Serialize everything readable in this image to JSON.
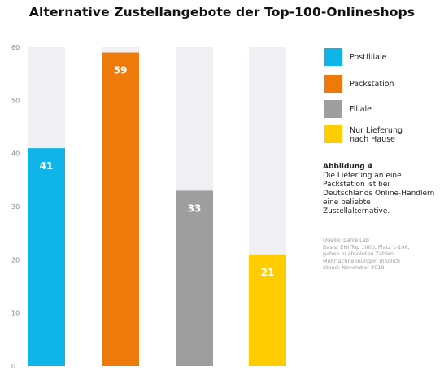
{
  "chart_data": {
    "type": "bar",
    "title": "Alternative Zustellangebote der Top-100-Onlineshops",
    "categories": [
      "Postfiliale",
      "Packstation",
      "Filiale",
      "Nur Lieferung nach Hause"
    ],
    "series": [
      {
        "values": [
          41,
          59,
          33,
          21
        ]
      }
    ],
    "data_labels": [
      "41",
      "59",
      "33",
      "21"
    ],
    "colors": [
      "#0fb5e8",
      "#ef7a0c",
      "#9e9e9e",
      "#ffcc00"
    ],
    "background_bar_color": "#efeff4",
    "ylim": [
      0,
      60
    ],
    "yticks": [
      "0",
      "10",
      "20",
      "30",
      "40",
      "50",
      "60"
    ],
    "grid": false,
    "legend_position": "right"
  },
  "legend": [
    {
      "label": "Postfiliale",
      "color": "#0fb5e8"
    },
    {
      "label": "Packstation",
      "color": "#ef7a0c"
    },
    {
      "label": "Filiale",
      "color": "#9e9e9e"
    },
    {
      "label": "Nur Lieferung nach Hause",
      "color": "#ffcc00"
    }
  ],
  "caption": {
    "title": "Abbildung 4",
    "text": "Die Lieferung an eine Packstation ist bei Deutschlands Online-Händlern eine beliebte Zustellalternative."
  },
  "source": {
    "lines": [
      "Quelle: parcelLab",
      "Basis: EHI Top 1000, Platz 1-106,",
      "gaben in absoluten Zahlen,",
      "Mehrfachnennungen möglich",
      "Stand: November 2019"
    ]
  }
}
